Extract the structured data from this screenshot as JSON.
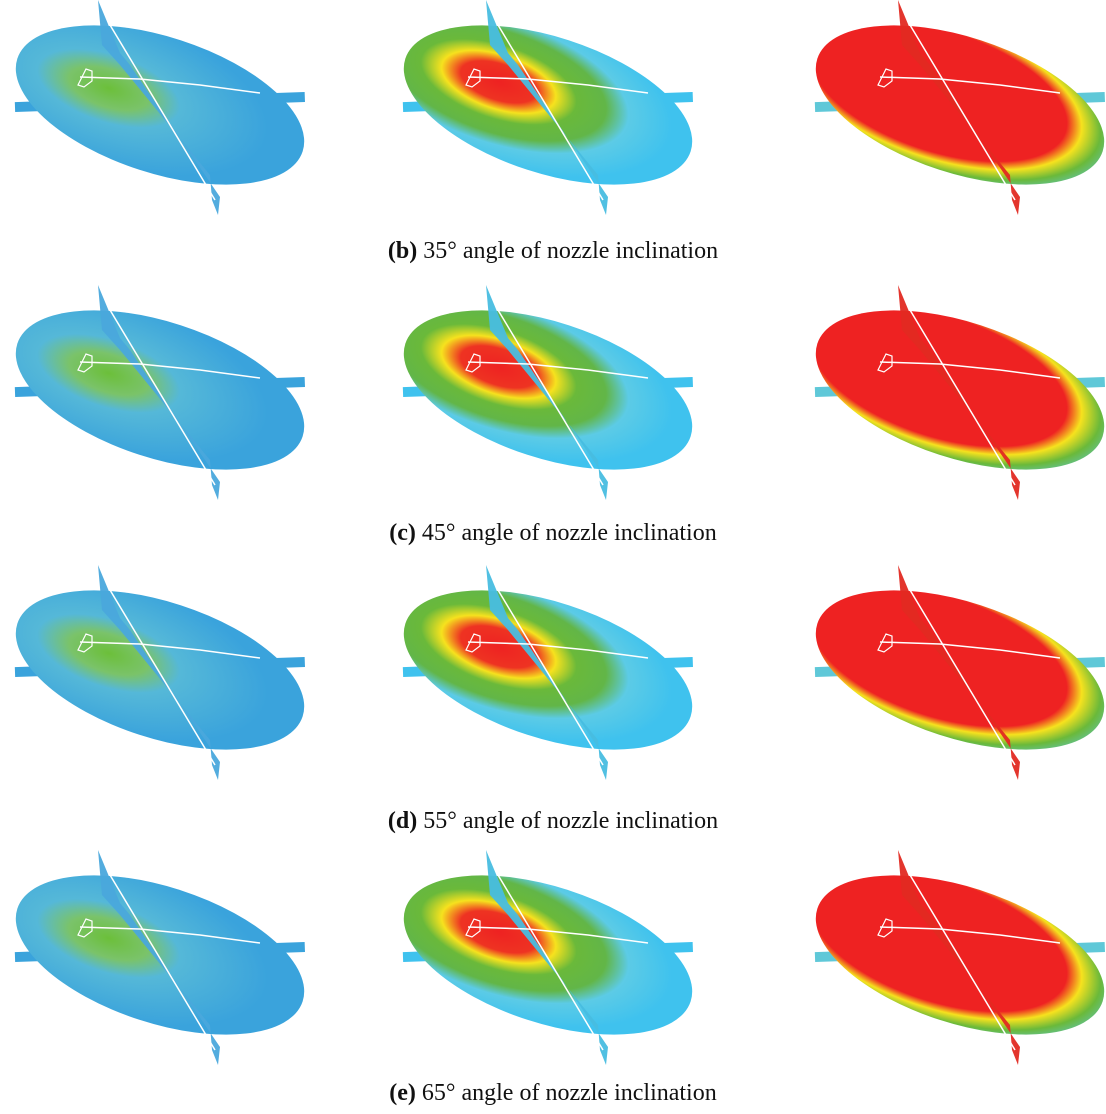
{
  "captions": [
    {
      "label": "(b)",
      "text": "35° angle of nozzle inclination"
    },
    {
      "label": "(c)",
      "text": "45° angle of nozzle inclination"
    },
    {
      "label": "(d)",
      "text": "55° angle of nozzle inclination"
    },
    {
      "label": "(e)",
      "text": "65° angle of nozzle inclination"
    }
  ]
}
